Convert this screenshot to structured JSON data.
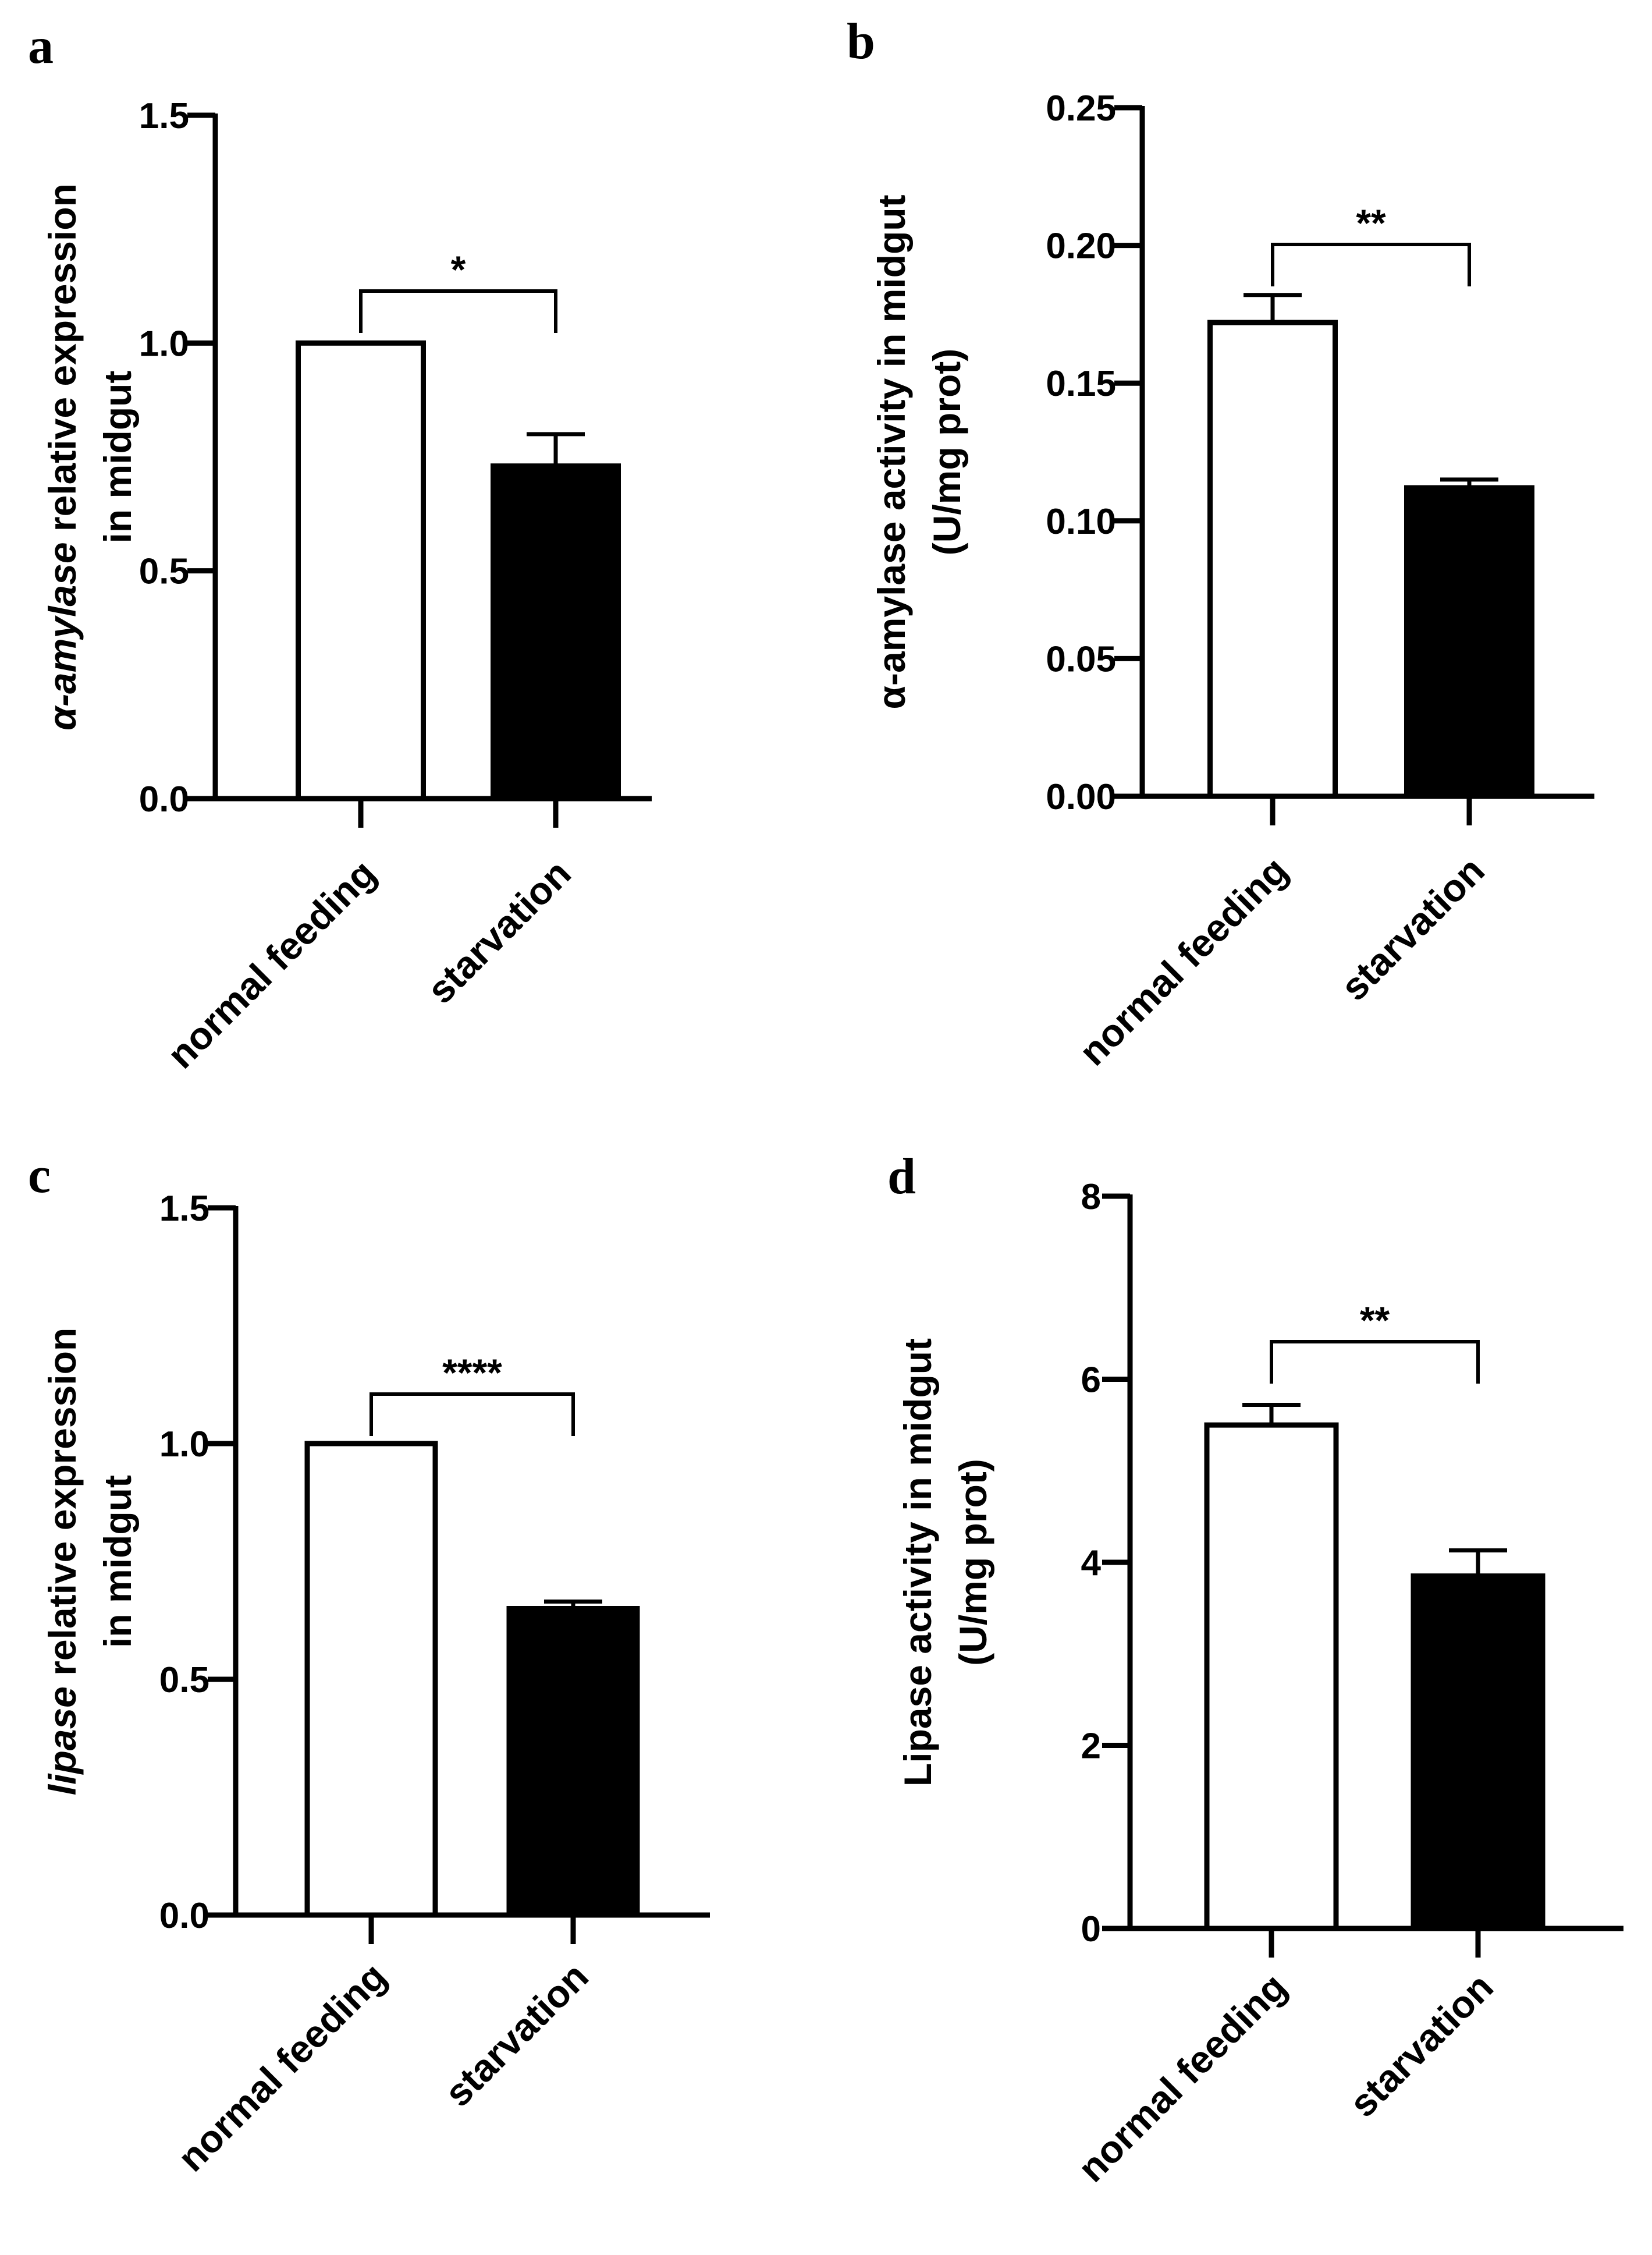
{
  "chart_data": [
    {
      "panel": "a",
      "type": "bar",
      "categories": [
        "normal feeding",
        "starvation"
      ],
      "values": [
        1.0,
        0.73
      ],
      "errors": [
        0.0,
        0.07
      ],
      "bar_fills": [
        "#ffffff",
        "#000000"
      ],
      "ylabel": {
        "italic": "α-amylase",
        "rest": " relative expression",
        "line2": "in midgut"
      },
      "ylim": [
        0,
        1.5
      ],
      "yticks": [
        0.0,
        0.5,
        1.0,
        1.5
      ],
      "ytick_labels": [
        "0.0",
        "0.5",
        "1.0",
        "1.5"
      ],
      "significance": "*",
      "grid": false
    },
    {
      "panel": "b",
      "type": "bar",
      "categories": [
        "normal feeding",
        "starvation"
      ],
      "values": [
        0.172,
        0.112
      ],
      "errors": [
        0.01,
        0.003
      ],
      "bar_fills": [
        "#ffffff",
        "#000000"
      ],
      "ylabel": {
        "italic": "",
        "rest": "α-amylase activity in midgut",
        "line2": "(U/mg prot)"
      },
      "ylim": [
        0,
        0.25
      ],
      "yticks": [
        0.0,
        0.05,
        0.1,
        0.15,
        0.2,
        0.25
      ],
      "ytick_labels": [
        "0.00",
        "0.05",
        "0.10",
        "0.15",
        "0.20",
        "0.25"
      ],
      "significance": "**",
      "grid": false
    },
    {
      "panel": "c",
      "type": "bar",
      "categories": [
        "normal feeding",
        "starvation"
      ],
      "values": [
        1.0,
        0.65
      ],
      "errors": [
        0.0,
        0.015
      ],
      "bar_fills": [
        "#ffffff",
        "#000000"
      ],
      "ylabel": {
        "italic": "lipase",
        "rest": " relative expression",
        "line2": "in midgut"
      },
      "ylim": [
        0,
        1.5
      ],
      "yticks": [
        0.0,
        0.5,
        1.0,
        1.5
      ],
      "ytick_labels": [
        "0.0",
        "0.5",
        "1.0",
        "1.5"
      ],
      "significance": "****",
      "grid": false
    },
    {
      "panel": "d",
      "type": "bar",
      "categories": [
        "normal feeding",
        "starvation"
      ],
      "values": [
        5.5,
        3.85
      ],
      "errors": [
        0.22,
        0.28
      ],
      "bar_fills": [
        "#ffffff",
        "#000000"
      ],
      "ylabel": {
        "italic": "",
        "rest": "Lipase activity in midgut",
        "line2": "(U/mg prot)"
      },
      "ylim": [
        0,
        8
      ],
      "yticks": [
        0,
        2,
        4,
        6,
        8
      ],
      "ytick_labels": [
        "0",
        "2",
        "4",
        "6",
        "8"
      ],
      "significance": "**",
      "grid": false
    }
  ]
}
